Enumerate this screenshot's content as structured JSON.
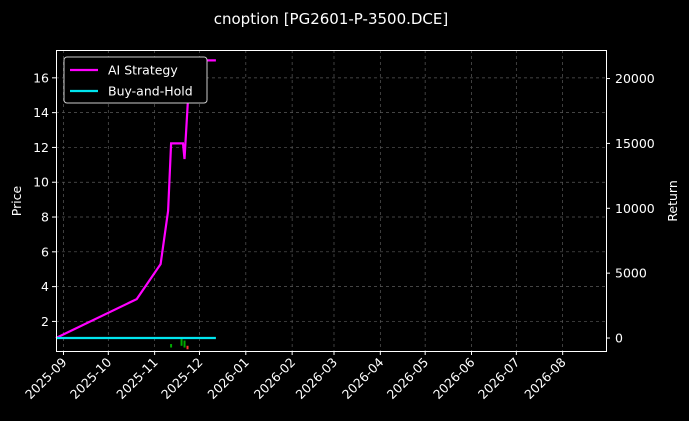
{
  "chart_data": {
    "type": "line",
    "title": "cnoption [PG2601-P-3500.DCE]",
    "ylabel_left": "Price",
    "ylabel_right": "Return",
    "ylim_left": [
      0.3,
      17.6
    ],
    "ylim_right": [
      -1000,
      22200
    ],
    "yticks_left": [
      2,
      4,
      6,
      8,
      10,
      12,
      14,
      16
    ],
    "yticks_right": [
      0,
      5000,
      10000,
      15000,
      20000
    ],
    "xlim": [
      "2025-08-27",
      "2026-08-30"
    ],
    "xticks": [
      "2025-09",
      "2025-10",
      "2025-11",
      "2025-12",
      "2026-01",
      "2026-02",
      "2026-03",
      "2026-04",
      "2026-05",
      "2026-06",
      "2026-07",
      "2026-08"
    ],
    "grid": true,
    "legend_position": "upper-left",
    "series": [
      {
        "name": "AI Strategy",
        "axis": "right",
        "color": "#ff00ff",
        "points": [
          [
            "2025-08-27",
            0
          ],
          [
            "2025-10-20",
            3000
          ],
          [
            "2025-11-05",
            5700
          ],
          [
            "2025-11-10",
            9800
          ],
          [
            "2025-11-12",
            15000
          ],
          [
            "2025-11-20",
            15000
          ],
          [
            "2025-11-21",
            13800
          ],
          [
            "2025-11-24",
            19700
          ],
          [
            "2025-11-29",
            21400
          ],
          [
            "2025-12-12",
            21400
          ]
        ]
      },
      {
        "name": "Buy-and-Hold",
        "axis": "right",
        "color": "#00e5ee",
        "points": [
          [
            "2025-08-27",
            0
          ],
          [
            "2025-12-12",
            0
          ]
        ]
      }
    ],
    "candles_left_axis": [
      {
        "date": "2025-11-12",
        "open": 0.7,
        "close": 0.5,
        "color": "#00aa00"
      },
      {
        "date": "2025-11-19",
        "open": 0.6,
        "close": 1.0,
        "color": "#00aa00"
      },
      {
        "date": "2025-11-21",
        "open": 0.9,
        "close": 0.5,
        "color": "#00aa00"
      },
      {
        "date": "2025-11-23",
        "open": 0.6,
        "close": 0.4,
        "color": "#ff3333"
      }
    ]
  }
}
